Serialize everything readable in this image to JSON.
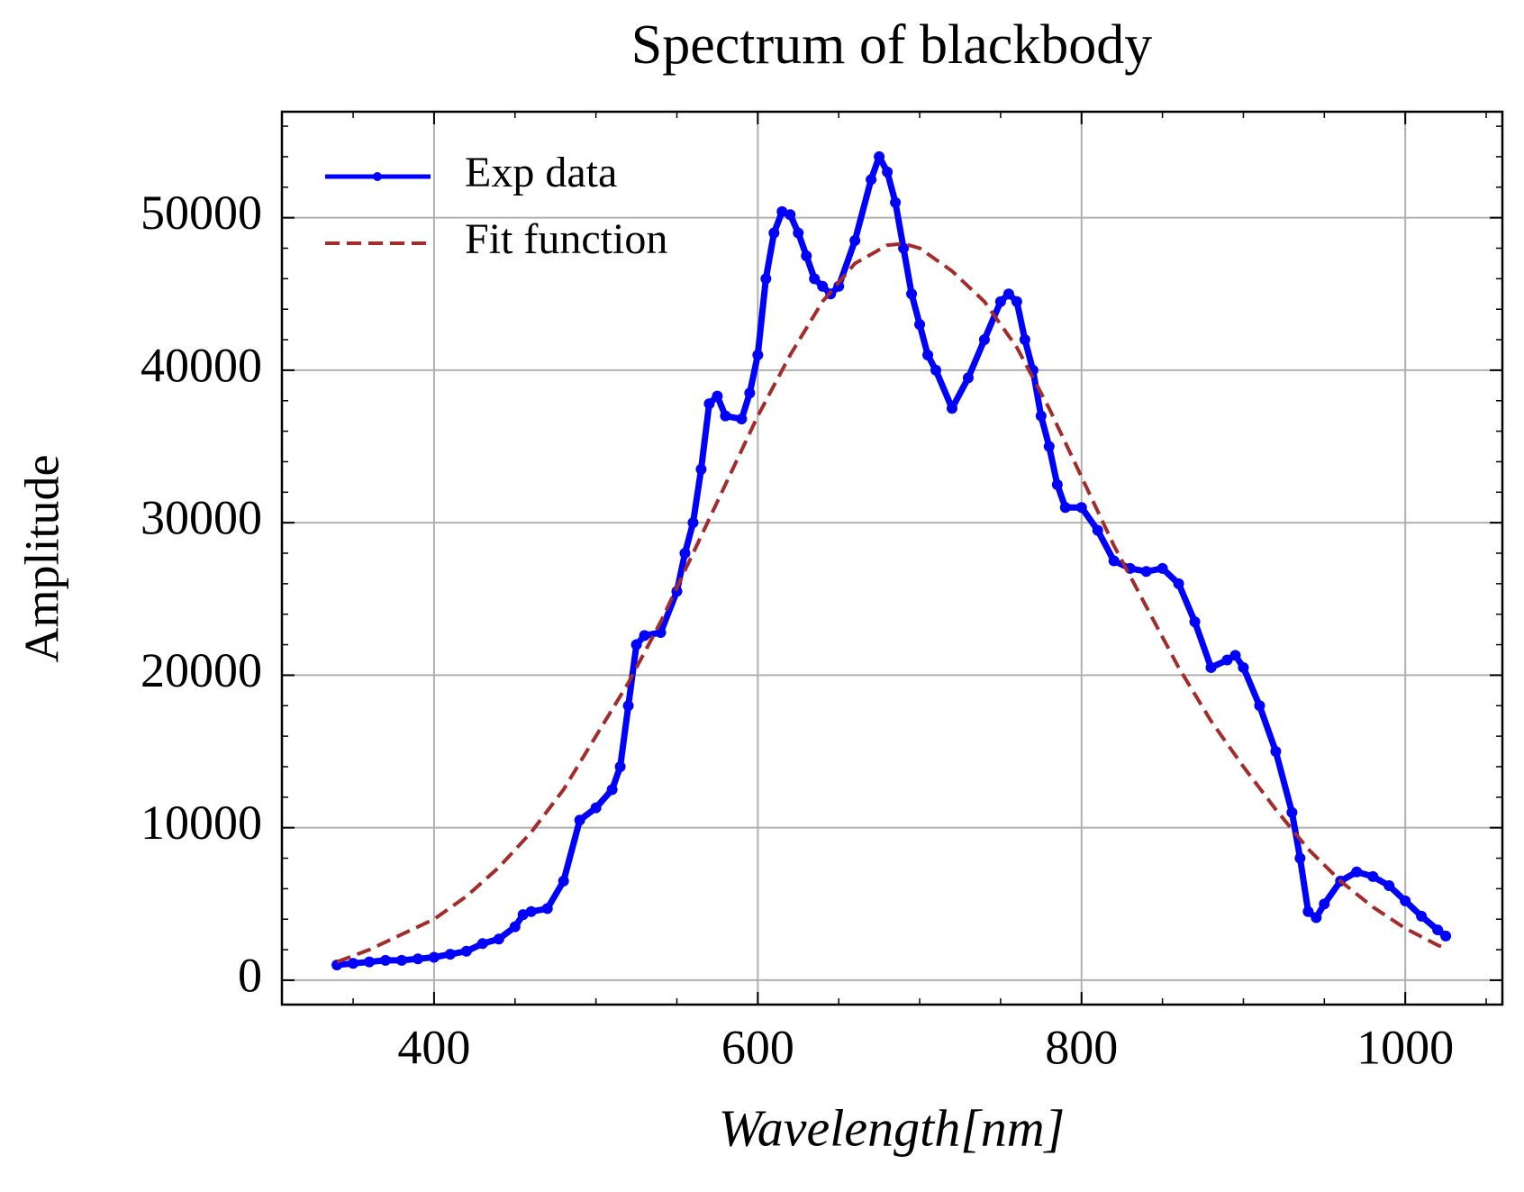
{
  "chart_data": {
    "type": "line",
    "title": "Spectrum of blackbody",
    "x_label": "Wavelength[nm]",
    "y_label": "Amplitude",
    "xlim": [
      306,
      1060
    ],
    "ylim": [
      -1600,
      56950
    ],
    "xticks": [
      400,
      600,
      800,
      1000
    ],
    "yticks": [
      0,
      10000,
      20000,
      30000,
      40000,
      50000
    ],
    "xminorticks": [
      350,
      450,
      500,
      550,
      650,
      700,
      750,
      850,
      900,
      950,
      1050
    ],
    "yminorticks": [
      2000,
      4000,
      6000,
      8000,
      12000,
      14000,
      16000,
      18000,
      22000,
      24000,
      26000,
      28000,
      32000,
      34000,
      36000,
      38000,
      42000,
      44000,
      46000,
      48000,
      52000,
      54000,
      56000
    ],
    "grid": true,
    "legend": "upper left",
    "series": [
      {
        "name": "Exp data",
        "color": "#0000ff",
        "style": "solid-markers",
        "x": [
          340,
          350,
          360,
          370,
          380,
          390,
          400,
          410,
          420,
          430,
          440,
          450,
          455,
          460,
          470,
          480,
          490,
          500,
          510,
          515,
          520,
          525,
          530,
          540,
          550,
          555,
          560,
          565,
          570,
          575,
          580,
          590,
          595,
          600,
          605,
          610,
          615,
          620,
          625,
          630,
          635,
          640,
          645,
          650,
          660,
          670,
          675,
          680,
          685,
          690,
          695,
          700,
          705,
          710,
          720,
          730,
          740,
          750,
          755,
          760,
          765,
          770,
          775,
          780,
          785,
          790,
          800,
          810,
          820,
          830,
          840,
          850,
          860,
          870,
          880,
          890,
          895,
          900,
          910,
          920,
          930,
          935,
          940,
          945,
          950,
          960,
          970,
          980,
          990,
          1000,
          1010,
          1020,
          1025
        ],
        "values": [
          1000,
          1100,
          1200,
          1300,
          1300,
          1400,
          1500,
          1700,
          1900,
          2400,
          2700,
          3500,
          4300,
          4500,
          4700,
          6500,
          10500,
          11300,
          12500,
          14000,
          18000,
          22000,
          22600,
          22800,
          25500,
          28000,
          30000,
          33500,
          37800,
          38300,
          37000,
          36800,
          38500,
          41000,
          46000,
          49000,
          50400,
          50200,
          49000,
          47500,
          46000,
          45500,
          45000,
          45500,
          48500,
          52500,
          54000,
          53000,
          51000,
          48000,
          45000,
          43000,
          41000,
          40000,
          37500,
          39500,
          42000,
          44500,
          45000,
          44500,
          42000,
          40000,
          37000,
          35000,
          32500,
          31000,
          31000,
          29500,
          27500,
          27000,
          26800,
          27000,
          26000,
          23500,
          20500,
          21000,
          21300,
          20500,
          18000,
          15000,
          11000,
          8000,
          4500,
          4100,
          5000,
          6500,
          7100,
          6800,
          6200,
          5200,
          4200,
          3300,
          2900
        ]
      },
      {
        "name": "Fit function",
        "color": "#a52a2a",
        "style": "dashed",
        "x": [
          340,
          360,
          380,
          400,
          420,
          440,
          460,
          480,
          500,
          520,
          540,
          560,
          580,
          600,
          620,
          640,
          660,
          680,
          690,
          700,
          720,
          740,
          760,
          780,
          800,
          820,
          840,
          860,
          880,
          900,
          920,
          940,
          960,
          980,
          1000,
          1020,
          1025
        ],
        "values": [
          1200,
          2000,
          3000,
          4000,
          5500,
          7400,
          9700,
          12500,
          16000,
          19500,
          23500,
          28000,
          32500,
          37000,
          41000,
          44500,
          47000,
          48200,
          48300,
          48000,
          46500,
          44500,
          41500,
          37500,
          33000,
          28500,
          24500,
          20500,
          17000,
          14000,
          11200,
          8600,
          6500,
          4800,
          3400,
          2300,
          2100
        ]
      }
    ]
  }
}
